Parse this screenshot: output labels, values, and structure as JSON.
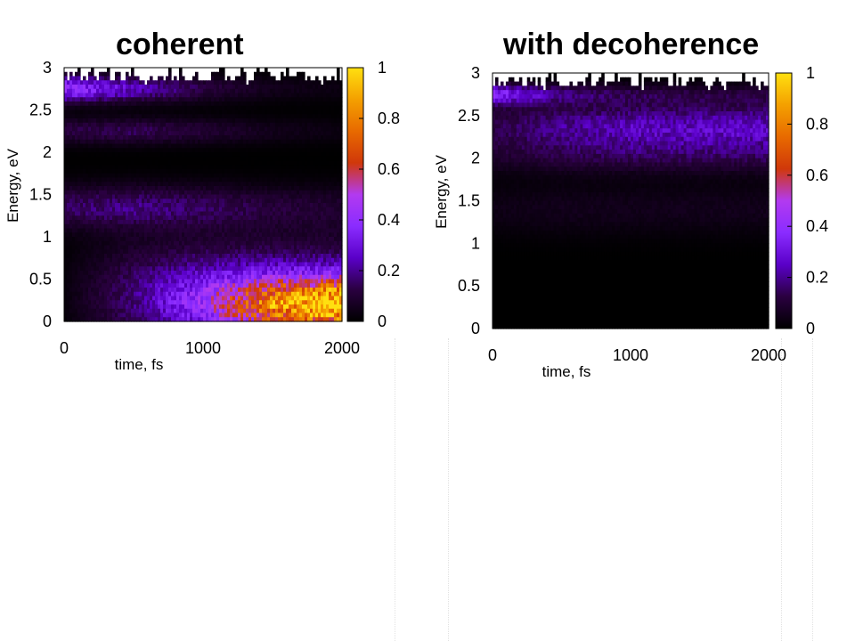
{
  "chart_data": [
    {
      "type": "heatmap",
      "title": "coherent",
      "xlabel": "time, fs",
      "ylabel": "Energy, eV",
      "xlim": [
        0,
        2000
      ],
      "ylim": [
        0,
        3
      ],
      "xticks": [
        "0",
        "1000",
        "2000"
      ],
      "yticks": [
        "0",
        "0.5",
        "1",
        "1.5",
        "2",
        "2.5",
        "3"
      ],
      "colorbar": {
        "range": [
          0,
          1
        ],
        "ticks": [
          "0",
          "0.2",
          "0.4",
          "0.6",
          "0.8",
          "1"
        ]
      },
      "colormap": [
        "#000000",
        "#2a0040",
        "#5a00c8",
        "#8a2cff",
        "#b23af0",
        "#d0380a",
        "#e86a00",
        "#f4a000",
        "#ffe010"
      ],
      "bands": [
        {
          "energy": 2.75,
          "width": 0.15,
          "intensity": [
            0.4,
            0.25,
            0.12,
            0.05,
            0.03
          ]
        },
        {
          "energy": 2.25,
          "width": 0.15,
          "intensity": [
            0.12,
            0.14,
            0.1,
            0.05,
            0.03
          ]
        },
        {
          "energy": 1.35,
          "width": 0.25,
          "intensity": [
            0.15,
            0.18,
            0.14,
            0.1,
            0.08
          ]
        },
        {
          "energy": 0.3,
          "width": 0.6,
          "intensity": [
            0.02,
            0.18,
            0.28,
            0.3,
            0.28
          ]
        },
        {
          "energy": 0.2,
          "width": 0.3,
          "intensity": [
            0.0,
            0.0,
            0.15,
            0.55,
            0.75
          ]
        }
      ]
    },
    {
      "type": "heatmap",
      "title": "with decoherence",
      "xlabel": "time, fs",
      "ylabel": "Energy, eV",
      "xlim": [
        0,
        2000
      ],
      "ylim": [
        0,
        3
      ],
      "xticks": [
        "0",
        "1000",
        "2000"
      ],
      "yticks": [
        "0",
        "0.5",
        "1",
        "1.5",
        "2",
        "2.5",
        "3"
      ],
      "colorbar": {
        "range": [
          0,
          1
        ],
        "ticks": [
          "0",
          "0.2",
          "0.4",
          "0.6",
          "0.8",
          "1"
        ]
      },
      "colormap": [
        "#000000",
        "#2a0040",
        "#5a00c8",
        "#8a2cff",
        "#b23af0",
        "#d0380a",
        "#e86a00",
        "#f4a000",
        "#ffe010"
      ],
      "bands": [
        {
          "energy": 2.75,
          "width": 0.12,
          "intensity": [
            0.35,
            0.15,
            0.1,
            0.08,
            0.08
          ]
        },
        {
          "energy": 2.35,
          "width": 0.3,
          "intensity": [
            0.12,
            0.2,
            0.24,
            0.25,
            0.25
          ]
        },
        {
          "energy": 2.0,
          "width": 0.2,
          "intensity": [
            0.05,
            0.07,
            0.08,
            0.08,
            0.08
          ]
        },
        {
          "energy": 1.4,
          "width": 0.3,
          "intensity": [
            0.04,
            0.05,
            0.05,
            0.05,
            0.05
          ]
        }
      ]
    }
  ]
}
